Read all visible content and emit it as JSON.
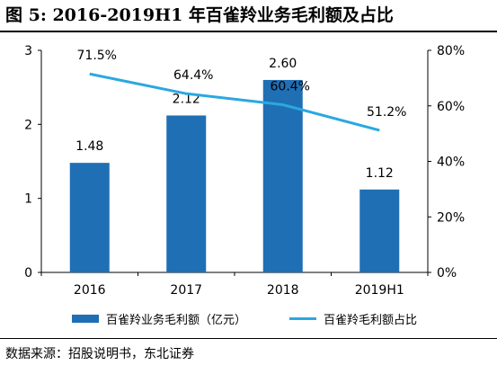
{
  "figure": {
    "title": "图 5: 2016-2019H1 年百雀羚业务毛利额及占比",
    "source": "数据来源：招股说明书，东北证券"
  },
  "chart_data": {
    "type": "bar",
    "categories": [
      "2016",
      "2017",
      "2018",
      "2019H1"
    ],
    "series": [
      {
        "name": "百雀羚业务毛利额（亿元）",
        "kind": "bar",
        "axis": "left",
        "color": "#1f6fb4",
        "values": [
          1.48,
          2.12,
          2.6,
          1.12
        ],
        "labels": [
          "1.48",
          "2.12",
          "2.60",
          "1.12"
        ]
      },
      {
        "name": "百雀羚毛利额占比",
        "kind": "line",
        "axis": "right",
        "color": "#2aa8e0",
        "values": [
          71.5,
          64.4,
          60.4,
          51.2
        ],
        "labels": [
          "71.5%",
          "64.4%",
          "60.4%",
          "51.2%"
        ]
      }
    ],
    "y_left": {
      "ylim": [
        0,
        3
      ],
      "ticks": [
        "0",
        "1",
        "2",
        "3"
      ]
    },
    "y_right": {
      "ylim": [
        0,
        80
      ],
      "ticks": [
        "0%",
        "20%",
        "40%",
        "60%",
        "80%"
      ]
    },
    "grid": false,
    "legend_position": "bottom"
  }
}
